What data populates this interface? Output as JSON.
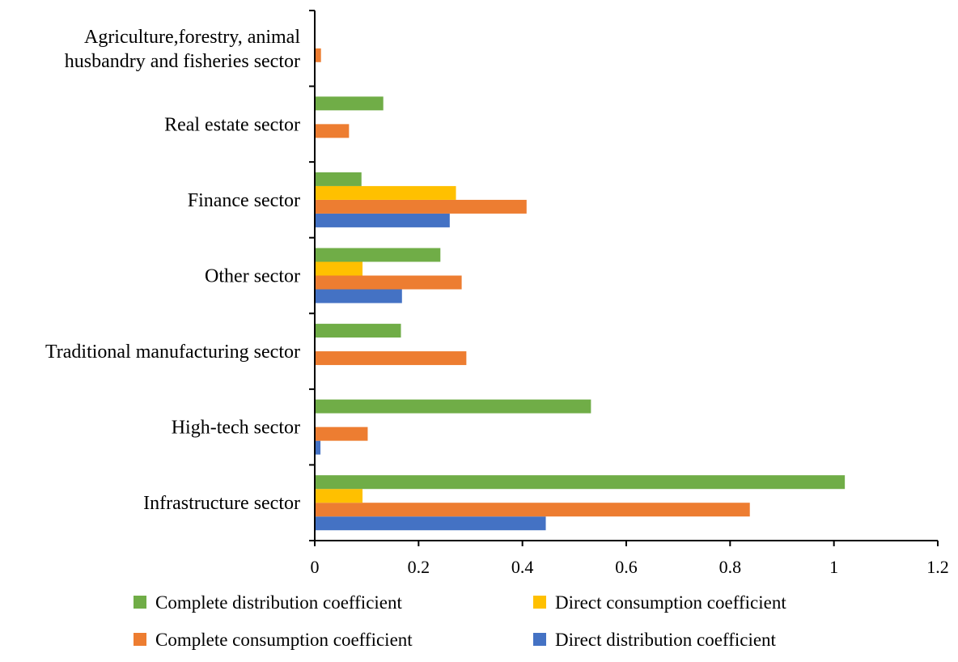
{
  "chart_data": {
    "type": "bar",
    "orientation": "horizontal",
    "categories": [
      "Infrastructure sector",
      "High-tech sector",
      "Traditional manufacturing sector",
      "Other sector",
      "Finance sector",
      "Real estate sector",
      "Agriculture,forestry, animal husbandry and fisheries sector"
    ],
    "category_label_lines": [
      [
        "Infrastructure sector"
      ],
      [
        "High-tech sector"
      ],
      [
        "Traditional manufacturing sector"
      ],
      [
        "Other sector"
      ],
      [
        "Finance sector"
      ],
      [
        "Real estate sector"
      ],
      [
        "Agriculture,forestry, animal",
        "husbandry and fisheries sector"
      ]
    ],
    "series": [
      {
        "name": "Direct distribution coefficient",
        "color": "#4472C4",
        "values": [
          0.445,
          0.011,
          0,
          0.168,
          0.26,
          0,
          0
        ]
      },
      {
        "name": "Complete consumption coefficient",
        "color": "#ED7D31",
        "values": [
          0.838,
          0.102,
          0.292,
          0.283,
          0.408,
          0.066,
          0.012
        ]
      },
      {
        "name": "Direct consumption coefficient",
        "color": "#FFC000",
        "values": [
          0.092,
          0,
          0,
          0.092,
          0.272,
          0,
          0
        ]
      },
      {
        "name": "Complete distribution coefficient",
        "color": "#70AD47",
        "values": [
          1.021,
          0.532,
          0.166,
          0.242,
          0.09,
          0.132,
          0
        ]
      }
    ],
    "xlim": [
      0,
      1.2
    ],
    "xticks": [
      "0",
      "0.2",
      "0.4",
      "0.6",
      "0.8",
      "1",
      "1.2"
    ],
    "legend": {
      "placement": "bottom",
      "order": [
        "Complete distribution coefficient",
        "Direct consumption coefficient",
        "Complete consumption coefficient",
        "Direct distribution coefficient"
      ]
    },
    "title": "",
    "xlabel": "",
    "ylabel": "",
    "grid": false
  }
}
